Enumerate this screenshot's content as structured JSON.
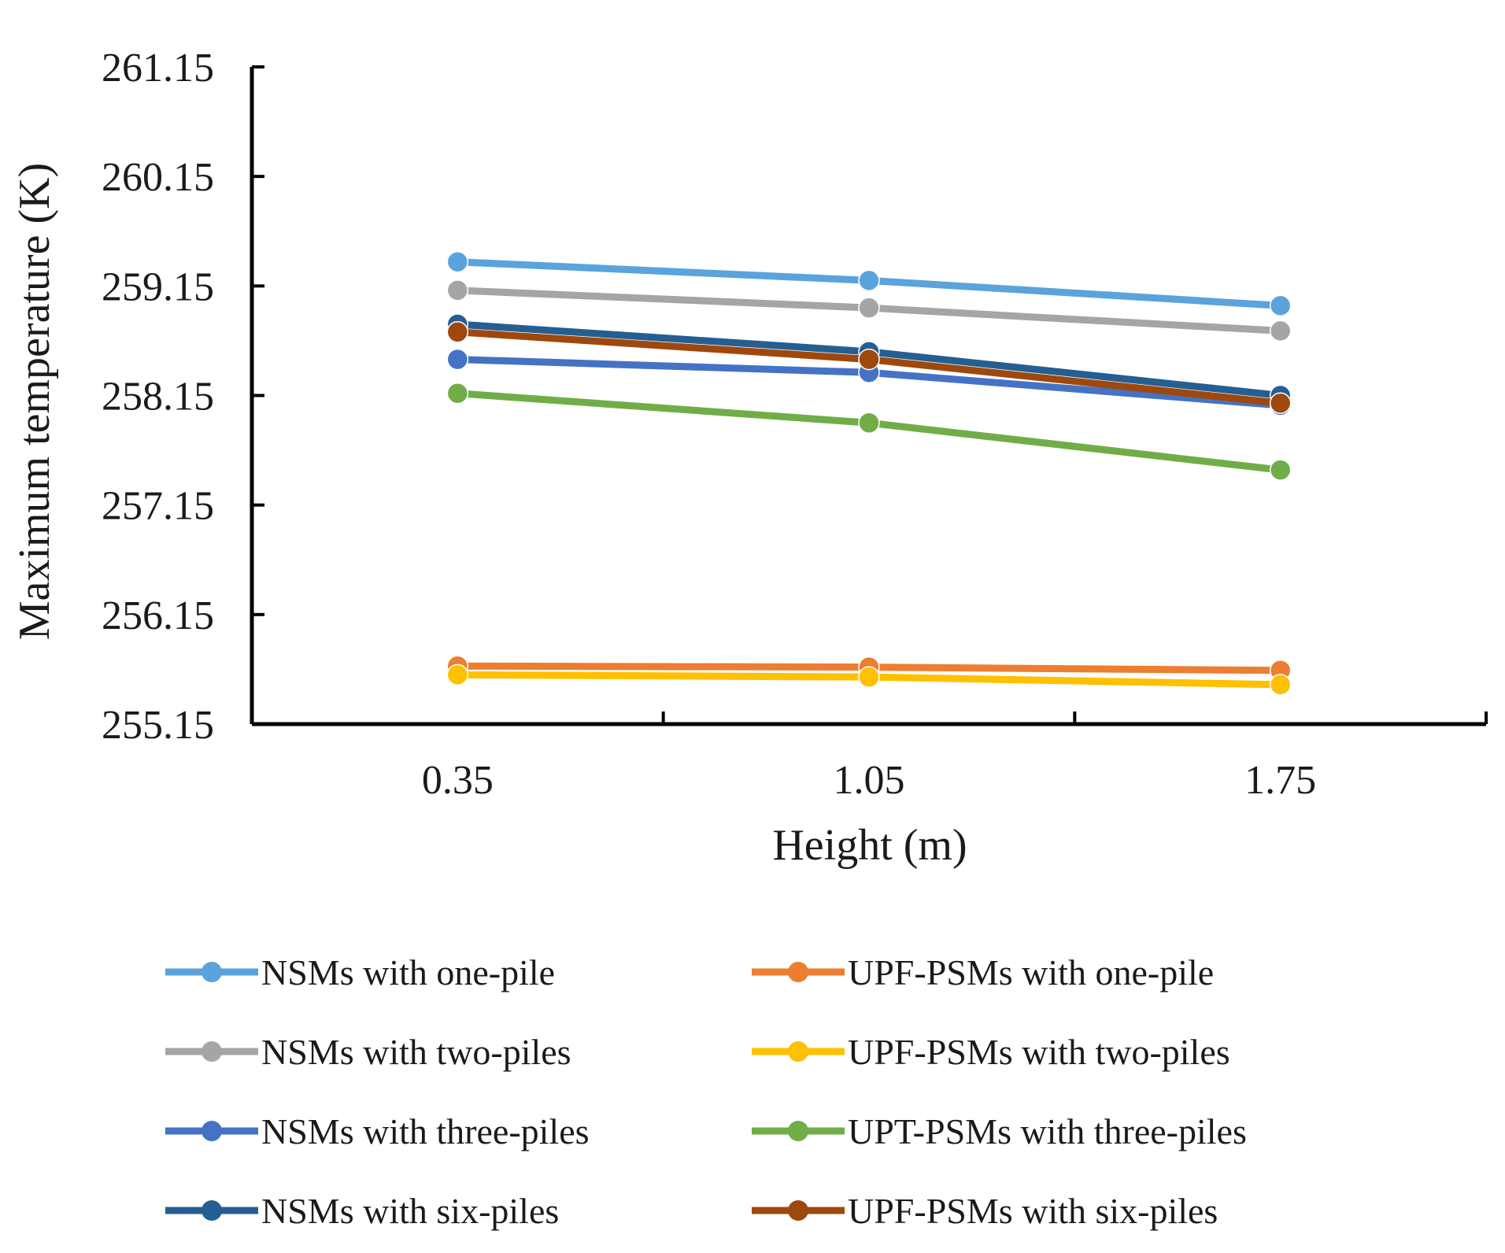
{
  "chart_data": {
    "type": "line",
    "title": "",
    "xlabel": "Height (m)",
    "ylabel": "Maximum temperature (K)",
    "categories": [
      "0.35",
      "1.05",
      "1.75"
    ],
    "x": [
      0.35,
      1.05,
      1.75
    ],
    "ylim": [
      255.15,
      261.15
    ],
    "yticks": [
      "255.15",
      "256.15",
      "257.15",
      "258.15",
      "259.15",
      "260.15",
      "261.15"
    ],
    "legend_position": "bottom",
    "series": [
      {
        "name": "NSMs with one-pile",
        "color": "#5BA3DC",
        "values": [
          259.37,
          259.2,
          258.97
        ]
      },
      {
        "name": "UPF-PSMs with one-pile",
        "color": "#ED7D31",
        "values": [
          255.68,
          255.67,
          255.64
        ]
      },
      {
        "name": "NSMs with two-piles",
        "color": "#A5A5A5",
        "values": [
          259.11,
          258.95,
          258.74
        ]
      },
      {
        "name": "UPF-PSMs with two-piles",
        "color": "#FFC000",
        "values": [
          255.6,
          255.58,
          255.51
        ]
      },
      {
        "name": "NSMs with three-piles",
        "color": "#4472C4",
        "values": [
          258.48,
          258.36,
          258.06
        ]
      },
      {
        "name": "UPT-PSMs with three-piles",
        "color": "#70AD47",
        "values": [
          258.17,
          257.9,
          257.47
        ]
      },
      {
        "name": "NSMs with six-piles",
        "color": "#255E91",
        "values": [
          258.8,
          258.55,
          258.15
        ]
      },
      {
        "name": "UPF-PSMs with six-piles",
        "color": "#9E480E",
        "values": [
          258.73,
          258.48,
          258.08
        ]
      }
    ]
  }
}
